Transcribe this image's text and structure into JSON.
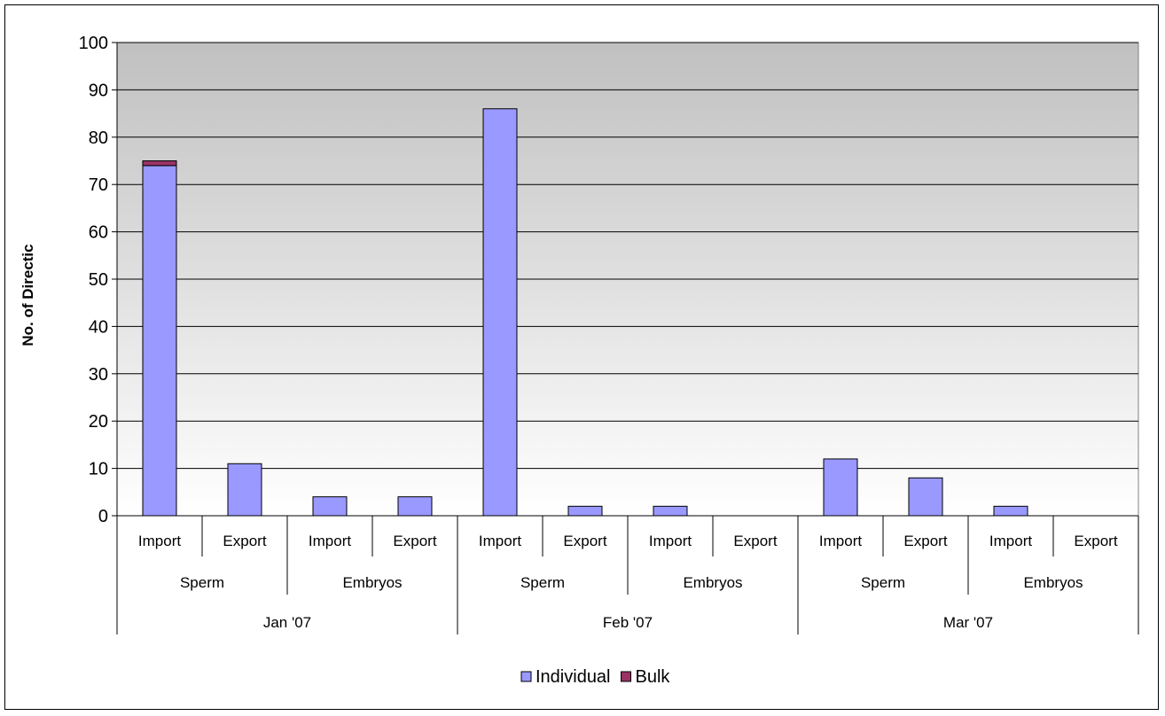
{
  "chart_data": {
    "type": "bar",
    "stacked": true,
    "ylabel": "No. of Directic",
    "ylim": [
      0,
      100
    ],
    "yticks": [
      0,
      10,
      20,
      30,
      40,
      50,
      60,
      70,
      80,
      90,
      100
    ],
    "grid": true,
    "legend_position": "bottom",
    "categories": [
      {
        "month": "Jan '07",
        "product": "Sperm",
        "direction": "Import"
      },
      {
        "month": "Jan '07",
        "product": "Sperm",
        "direction": "Export"
      },
      {
        "month": "Jan '07",
        "product": "Embryos",
        "direction": "Import"
      },
      {
        "month": "Jan '07",
        "product": "Embryos",
        "direction": "Export"
      },
      {
        "month": "Feb '07",
        "product": "Sperm",
        "direction": "Import"
      },
      {
        "month": "Feb '07",
        "product": "Sperm",
        "direction": "Export"
      },
      {
        "month": "Feb '07",
        "product": "Embryos",
        "direction": "Import"
      },
      {
        "month": "Feb '07",
        "product": "Embryos",
        "direction": "Export"
      },
      {
        "month": "Mar '07",
        "product": "Sperm",
        "direction": "Import"
      },
      {
        "month": "Mar '07",
        "product": "Sperm",
        "direction": "Export"
      },
      {
        "month": "Mar '07",
        "product": "Embryos",
        "direction": "Import"
      },
      {
        "month": "Mar '07",
        "product": "Embryos",
        "direction": "Export"
      }
    ],
    "series": [
      {
        "name": "Individual",
        "color": "#9999ff",
        "values": [
          74,
          11,
          4,
          4,
          86,
          2,
          2,
          0,
          12,
          8,
          2,
          0
        ]
      },
      {
        "name": "Bulk",
        "color": "#993366",
        "values": [
          1,
          0,
          0,
          0,
          0,
          0,
          0,
          0,
          0,
          0,
          0,
          0
        ]
      }
    ],
    "plot_background": {
      "top_color": "#c0c0c0",
      "bottom_color": "#ffffff"
    }
  }
}
